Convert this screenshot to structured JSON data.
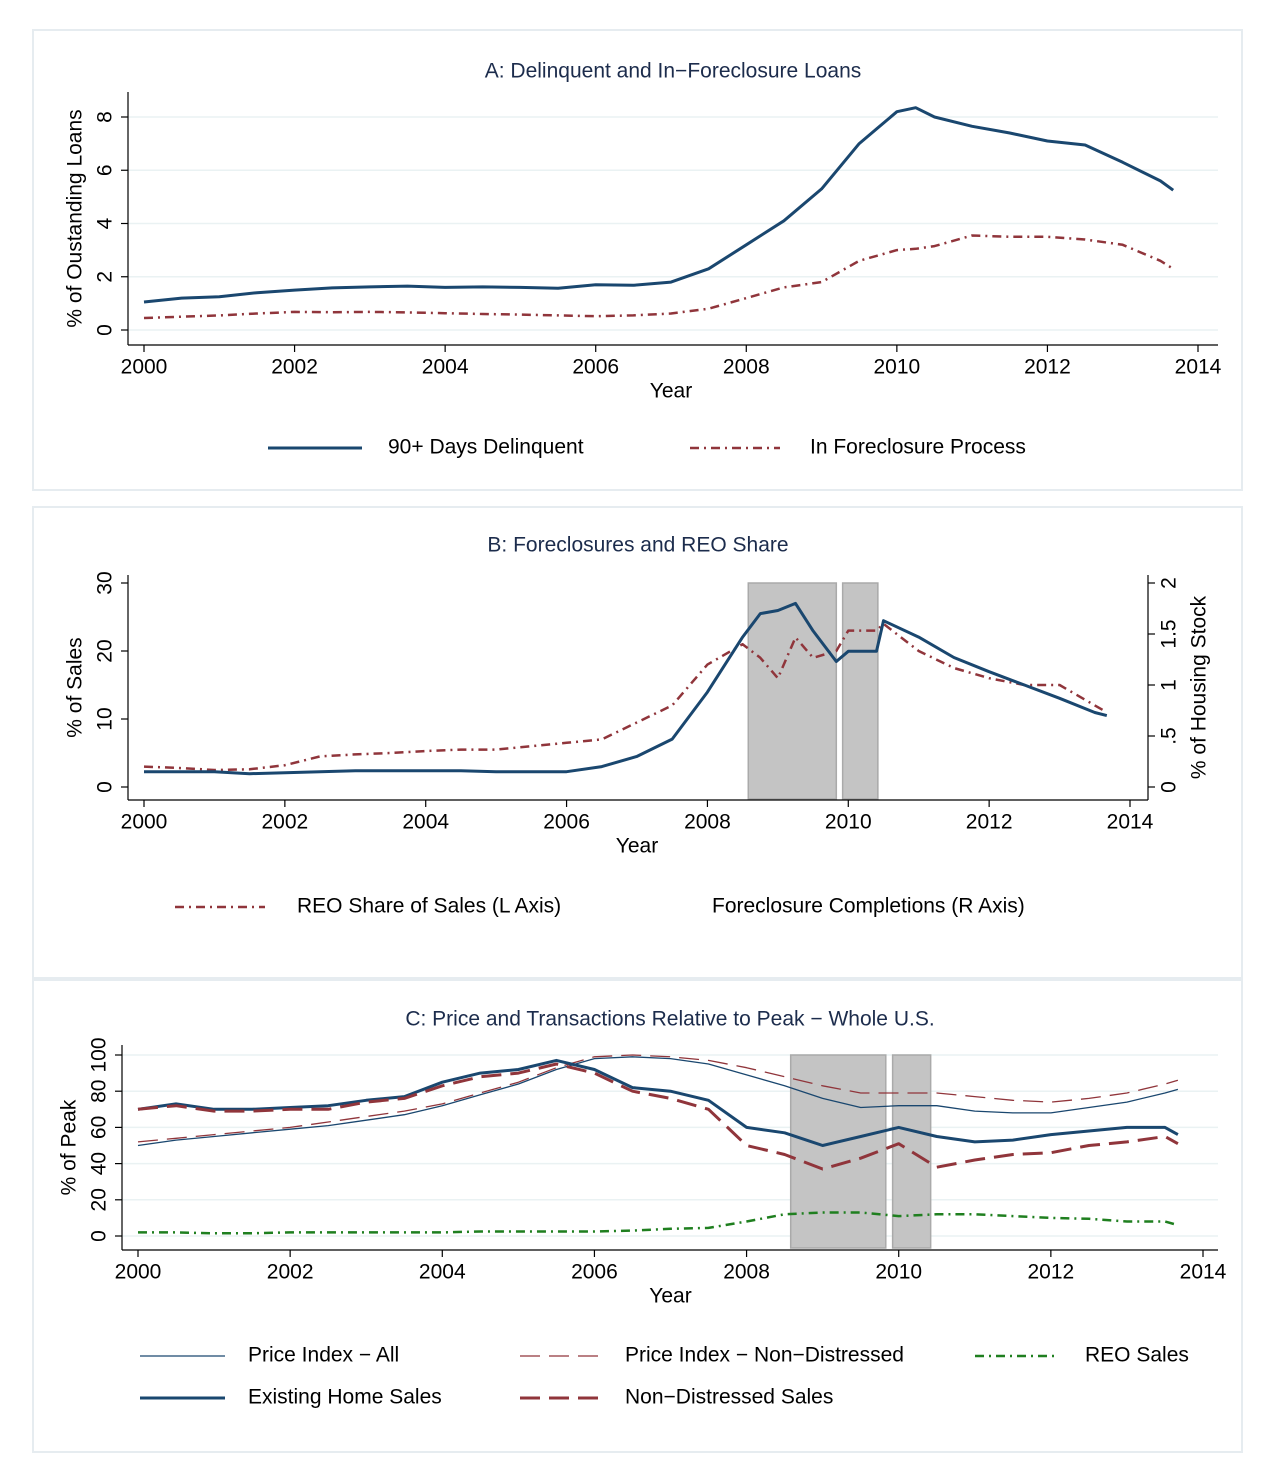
{
  "chart_data": [
    {
      "type": "line",
      "title": "A: Delinquent and In−Foreclosure Loans",
      "x_label": "Year",
      "y_label": "% of Oustanding Loans",
      "xlim": [
        2000,
        2014
      ],
      "xticks": [
        2000,
        2002,
        2004,
        2006,
        2008,
        2010,
        2012,
        2014
      ],
      "ylim": [
        0,
        8
      ],
      "yticks": [
        0,
        2,
        4,
        6,
        8
      ],
      "grid": true,
      "legend": "bottom",
      "x": [
        2000,
        2000.5,
        2001,
        2001.5,
        2002,
        2002.5,
        2003,
        2003.5,
        2004,
        2004.5,
        2005,
        2005.5,
        2006,
        2006.5,
        2007,
        2007.5,
        2008,
        2008.5,
        2009,
        2009.5,
        2010,
        2010.25,
        2010.5,
        2011,
        2011.5,
        2012,
        2012.5,
        2013,
        2013.5,
        2013.67
      ],
      "series": [
        {
          "name": "90+ Days Delinquent",
          "color": "#1a476f",
          "dash": "solid",
          "width": 3,
          "values": [
            1.05,
            1.2,
            1.25,
            1.4,
            1.5,
            1.58,
            1.62,
            1.65,
            1.6,
            1.62,
            1.6,
            1.57,
            1.7,
            1.68,
            1.8,
            2.3,
            3.2,
            4.1,
            5.3,
            7.0,
            8.2,
            8.35,
            8.0,
            7.65,
            7.4,
            7.1,
            6.95,
            6.3,
            5.6,
            5.25
          ]
        },
        {
          "name": "In Foreclosure Process",
          "color": "#90353b",
          "dash": "dashdot",
          "width": 2.5,
          "values": [
            0.45,
            0.5,
            0.55,
            0.62,
            0.68,
            0.67,
            0.68,
            0.66,
            0.63,
            0.6,
            0.58,
            0.55,
            0.52,
            0.55,
            0.62,
            0.8,
            1.2,
            1.6,
            1.8,
            2.6,
            3.0,
            3.05,
            3.15,
            3.55,
            3.5,
            3.5,
            3.4,
            3.2,
            2.6,
            2.3
          ]
        }
      ]
    },
    {
      "type": "line",
      "title": "B: Foreclosures and REO Share",
      "x_label": "Year",
      "y_label": "% of Sales",
      "y2_label": "% of Housing Stock",
      "xlim": [
        2000,
        2014
      ],
      "xticks": [
        2000,
        2002,
        2004,
        2006,
        2008,
        2010,
        2012,
        2014
      ],
      "ylim": [
        0,
        30
      ],
      "yticks": [
        0,
        10,
        20,
        30
      ],
      "y2lim": [
        0,
        2
      ],
      "y2ticks": [
        0,
        {
          "value": 0.5,
          "label": ".5"
        },
        1,
        1.5,
        2
      ],
      "grid": false,
      "legend": "bottom",
      "shaded_regions": [
        [
          2008.58,
          2009.83
        ],
        [
          2009.92,
          2010.42
        ]
      ],
      "x": [
        2000,
        2000.5,
        2001,
        2001.5,
        2002,
        2002.5,
        2003,
        2003.5,
        2004,
        2004.5,
        2005,
        2005.5,
        2006,
        2006.5,
        2007,
        2007.5,
        2008,
        2008.5,
        2008.75,
        2009,
        2009.25,
        2009.5,
        2009.83,
        2010,
        2010.4,
        2010.5,
        2011,
        2011.5,
        2012,
        2012.5,
        2013,
        2013.5,
        2013.67
      ],
      "series": [
        {
          "name": "REO Share of Sales (L Axis)",
          "color": "#90353b",
          "dash": "dashdot",
          "width": 2.5,
          "values": [
            3,
            2.8,
            2.5,
            2.6,
            3.2,
            4.5,
            4.8,
            5,
            5.3,
            5.5,
            5.5,
            6,
            6.5,
            7,
            9.5,
            12,
            18,
            21,
            19,
            16,
            22,
            19,
            20,
            23,
            23,
            24,
            20,
            17.5,
            16,
            15,
            15,
            12,
            11
          ]
        },
        {
          "name": "Foreclosure Completions (R Axis)",
          "color": "#1a476f",
          "dash": "solid",
          "width": 3,
          "axis": "y2",
          "legend_symbol": false,
          "values": [
            0.15,
            0.15,
            0.15,
            0.13,
            0.14,
            0.15,
            0.16,
            0.16,
            0.16,
            0.16,
            0.15,
            0.15,
            0.15,
            0.2,
            0.3,
            0.47,
            0.93,
            1.47,
            1.7,
            1.73,
            1.8,
            1.53,
            1.23,
            1.33,
            1.33,
            1.63,
            1.47,
            1.27,
            1.13,
            1.0,
            0.87,
            0.73,
            0.7
          ]
        }
      ]
    },
    {
      "type": "line",
      "title": "C: Price and Transactions Relative to Peak − Whole U.S.",
      "x_label": "Year",
      "y_label": "% of Peak",
      "xlim": [
        2000,
        2014
      ],
      "xticks": [
        2000,
        2002,
        2004,
        2006,
        2008,
        2010,
        2012,
        2014
      ],
      "ylim": [
        0,
        100
      ],
      "yticks": [
        0,
        20,
        40,
        60,
        80,
        100
      ],
      "grid": true,
      "legend": "bottom",
      "shaded_regions": [
        [
          2008.58,
          2009.83
        ],
        [
          2009.92,
          2010.42
        ]
      ],
      "x": [
        2000,
        2000.5,
        2001,
        2001.5,
        2002,
        2002.5,
        2003,
        2003.5,
        2004,
        2004.5,
        2005,
        2005.5,
        2006,
        2006.5,
        2007,
        2007.5,
        2008,
        2008.5,
        2009,
        2009.5,
        2010,
        2010.5,
        2011,
        2011.5,
        2012,
        2012.5,
        2013,
        2013.5,
        2013.67
      ],
      "series": [
        {
          "name": "Price Index − All",
          "color": "#1a476f",
          "dash": "solid",
          "width": 1.3,
          "values": [
            50,
            53,
            55,
            57,
            59,
            61,
            64,
            67,
            72,
            78,
            84,
            92,
            98,
            99,
            98,
            95,
            89,
            83,
            76,
            71,
            72,
            72,
            69,
            68,
            68,
            71,
            74,
            79,
            81
          ]
        },
        {
          "name": "Price Index − Non−Distressed",
          "color": "#90353b",
          "dash": "longdash",
          "width": 1.3,
          "values": [
            52,
            54,
            56,
            58,
            60,
            63,
            66,
            69,
            73,
            79,
            85,
            93,
            99,
            100,
            99,
            97,
            93,
            88,
            83,
            79,
            79,
            79,
            77,
            75,
            74,
            76,
            79,
            84,
            86
          ]
        },
        {
          "name": "REO Sales",
          "color": "#1f7f1f",
          "dash": "dashdot",
          "width": 2.5,
          "values": [
            2,
            2,
            1.5,
            1.5,
            2,
            2,
            2,
            2,
            2,
            2.5,
            2.5,
            2.5,
            2.5,
            3,
            4,
            4.5,
            8,
            12,
            13,
            13,
            11,
            12,
            12,
            11,
            10,
            9.5,
            8,
            8,
            6
          ]
        },
        {
          "name": "Existing Home Sales",
          "color": "#1a476f",
          "dash": "solid",
          "width": 3,
          "values": [
            70,
            73,
            70,
            70,
            71,
            72,
            75,
            77,
            85,
            90,
            92,
            97,
            92,
            82,
            80,
            75,
            60,
            57,
            50,
            55,
            60,
            55,
            52,
            53,
            56,
            58,
            60,
            60,
            56
          ]
        },
        {
          "name": "Non−Distressed Sales",
          "color": "#90353b",
          "dash": "longdash",
          "width": 3,
          "values": [
            70,
            72,
            69,
            69,
            70,
            70,
            74,
            76,
            83,
            88,
            90,
            95,
            90,
            80,
            76,
            70,
            50,
            45,
            37,
            43,
            51,
            38,
            42,
            45,
            46,
            50,
            52,
            55,
            51
          ]
        }
      ]
    }
  ]
}
